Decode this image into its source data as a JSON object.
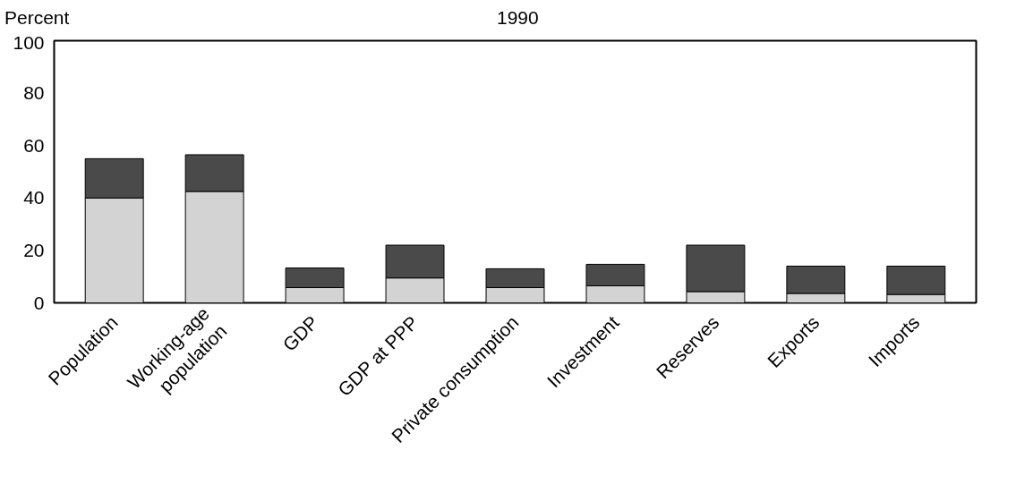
{
  "chart_data": {
    "type": "bar",
    "title": "1990",
    "ylabel": "Percent",
    "stacked": true,
    "categories": [
      "Population",
      "Working-age\npopulation",
      "GDP",
      "GDP at PPP",
      "Private consumption",
      "Investment",
      "Reserves",
      "Exports",
      "Imports"
    ],
    "series": [
      {
        "color": "#d3d3d3",
        "values": [
          40,
          42.5,
          5.8,
          9.5,
          5.8,
          6.5,
          4.3,
          3.6,
          3.2
        ]
      },
      {
        "color": "#4a4a4a",
        "values": [
          15,
          14,
          7.5,
          12.5,
          7.2,
          8.2,
          17.7,
          10.4,
          10.8
        ]
      }
    ],
    "ylim": [
      0,
      100
    ],
    "yticks": [
      0,
      20,
      40,
      60,
      80,
      100
    ]
  }
}
